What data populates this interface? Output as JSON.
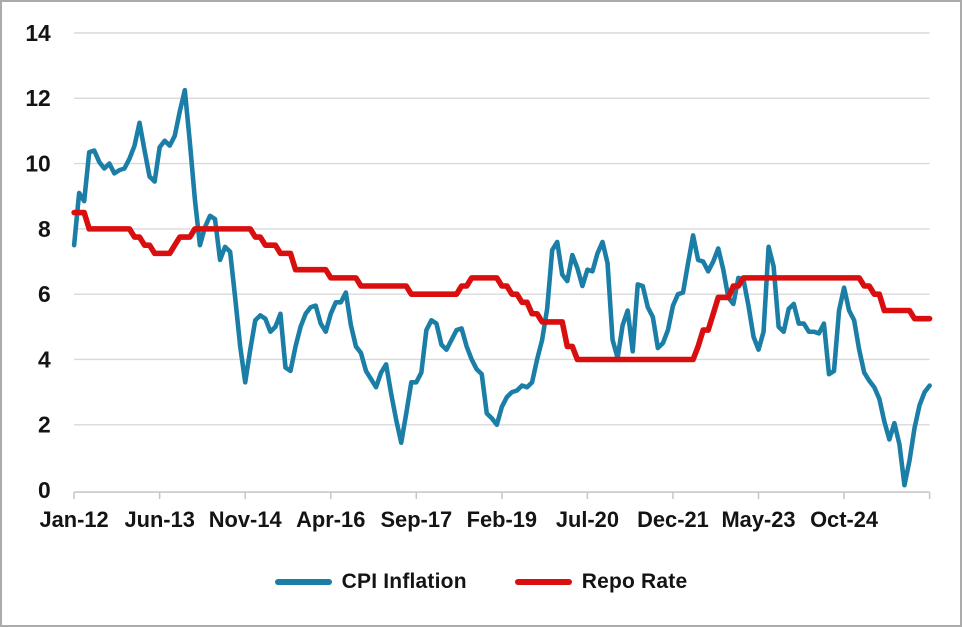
{
  "chart_data": {
    "type": "line",
    "title": "",
    "x": {
      "tick_labels": [
        "Jan-12",
        "Jun-13",
        "Nov-14",
        "Apr-16",
        "Sep-17",
        "Feb-19",
        "Jul-20",
        "Dec-21",
        "May-23",
        "Oct-24"
      ],
      "label_interval": 17,
      "points_per_series": 171
    },
    "y": {
      "ticks": [
        0,
        2,
        4,
        6,
        8,
        10,
        12,
        14
      ],
      "lim": [
        0,
        14
      ]
    },
    "grid": true,
    "legend_position": "bottom-center",
    "colors": {
      "gridline": "#d9d9d9",
      "axis_line": "#c8c8c8",
      "label_text": "#141414",
      "frame_border": "#ababab",
      "background": "#ffffff"
    },
    "series": [
      {
        "name": "CPI Inflation",
        "color": "#1b7ea6",
        "values": [
          7.5,
          9.1,
          8.85,
          10.35,
          10.4,
          10.05,
          9.85,
          10.0,
          9.7,
          9.8,
          9.85,
          10.15,
          10.55,
          11.25,
          10.4,
          9.6,
          9.45,
          10.5,
          10.7,
          10.55,
          10.85,
          11.6,
          12.25,
          10.65,
          8.9,
          7.5,
          8.05,
          8.4,
          8.3,
          7.05,
          7.45,
          7.3,
          5.9,
          4.4,
          3.3,
          4.3,
          5.2,
          5.35,
          5.25,
          4.85,
          5.0,
          5.4,
          3.75,
          3.65,
          4.4,
          5.0,
          5.4,
          5.6,
          5.65,
          5.1,
          4.85,
          5.4,
          5.75,
          5.75,
          6.05,
          5.05,
          4.4,
          4.2,
          3.65,
          3.4,
          3.15,
          3.6,
          3.85,
          2.95,
          2.15,
          1.45,
          2.35,
          3.3,
          3.3,
          3.6,
          4.9,
          5.2,
          5.1,
          4.45,
          4.3,
          4.6,
          4.9,
          4.95,
          4.4,
          4.0,
          3.7,
          3.55,
          2.35,
          2.2,
          2.0,
          2.55,
          2.85,
          3.0,
          3.05,
          3.2,
          3.15,
          3.3,
          4.0,
          4.6,
          5.55,
          7.35,
          7.6,
          6.6,
          6.4,
          7.2,
          6.8,
          6.25,
          6.75,
          6.7,
          7.25,
          7.6,
          6.95,
          4.6,
          4.05,
          5.05,
          5.5,
          4.25,
          6.3,
          6.25,
          5.6,
          5.3,
          4.35,
          4.5,
          4.9,
          5.65,
          6.0,
          6.05,
          6.95,
          7.8,
          7.05,
          7.0,
          6.7,
          7.0,
          7.4,
          6.75,
          5.9,
          5.7,
          6.5,
          6.45,
          5.65,
          4.7,
          4.3,
          4.85,
          7.45,
          6.85,
          5.0,
          4.85,
          5.55,
          5.7,
          5.1,
          5.1,
          4.85,
          4.85,
          4.8,
          5.1,
          3.55,
          3.65,
          5.5,
          6.2,
          5.5,
          5.2,
          4.3,
          3.6,
          3.35,
          3.15,
          2.8,
          2.1,
          1.55,
          2.05,
          1.4,
          0.15,
          0.9,
          1.9,
          2.6,
          3.0,
          3.2
        ]
      },
      {
        "name": "Repo Rate",
        "color": "#d90e0e",
        "values": [
          8.5,
          8.5,
          8.5,
          8.0,
          8.0,
          8.0,
          8.0,
          8.0,
          8.0,
          8.0,
          8.0,
          8.0,
          7.75,
          7.75,
          7.5,
          7.5,
          7.25,
          7.25,
          7.25,
          7.25,
          7.5,
          7.75,
          7.75,
          7.75,
          8.0,
          8.0,
          8.0,
          8.0,
          8.0,
          8.0,
          8.0,
          8.0,
          8.0,
          8.0,
          8.0,
          8.0,
          7.75,
          7.75,
          7.5,
          7.5,
          7.5,
          7.25,
          7.25,
          7.25,
          6.75,
          6.75,
          6.75,
          6.75,
          6.75,
          6.75,
          6.75,
          6.5,
          6.5,
          6.5,
          6.5,
          6.5,
          6.5,
          6.25,
          6.25,
          6.25,
          6.25,
          6.25,
          6.25,
          6.25,
          6.25,
          6.25,
          6.25,
          6.0,
          6.0,
          6.0,
          6.0,
          6.0,
          6.0,
          6.0,
          6.0,
          6.0,
          6.0,
          6.25,
          6.25,
          6.5,
          6.5,
          6.5,
          6.5,
          6.5,
          6.5,
          6.25,
          6.25,
          6.0,
          6.0,
          5.75,
          5.75,
          5.4,
          5.4,
          5.15,
          5.15,
          5.15,
          5.15,
          5.15,
          4.4,
          4.4,
          4.0,
          4.0,
          4.0,
          4.0,
          4.0,
          4.0,
          4.0,
          4.0,
          4.0,
          4.0,
          4.0,
          4.0,
          4.0,
          4.0,
          4.0,
          4.0,
          4.0,
          4.0,
          4.0,
          4.0,
          4.0,
          4.0,
          4.0,
          4.0,
          4.4,
          4.9,
          4.9,
          5.4,
          5.9,
          5.9,
          5.9,
          6.25,
          6.25,
          6.5,
          6.5,
          6.5,
          6.5,
          6.5,
          6.5,
          6.5,
          6.5,
          6.5,
          6.5,
          6.5,
          6.5,
          6.5,
          6.5,
          6.5,
          6.5,
          6.5,
          6.5,
          6.5,
          6.5,
          6.5,
          6.5,
          6.5,
          6.5,
          6.25,
          6.25,
          6.0,
          6.0,
          5.5,
          5.5,
          5.5,
          5.5,
          5.5,
          5.5,
          5.25,
          5.25,
          5.25,
          5.25
        ]
      }
    ]
  },
  "legend": {
    "items": [
      {
        "label": "CPI Inflation"
      },
      {
        "label": "Repo Rate"
      }
    ]
  }
}
